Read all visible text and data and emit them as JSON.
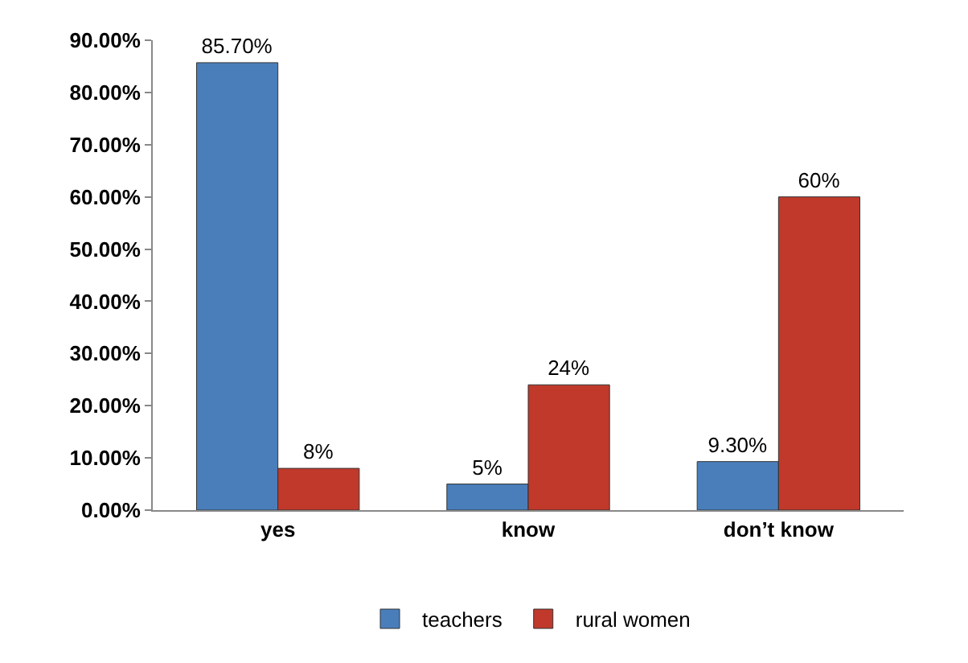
{
  "chart_data": {
    "type": "bar",
    "categories": [
      "yes",
      "know",
      "don’t know"
    ],
    "series": [
      {
        "name": "teachers",
        "color": "#4a7ebb",
        "values": [
          85.7,
          5,
          9.3
        ],
        "value_labels": [
          "85.70%",
          "5%",
          "9.30%"
        ]
      },
      {
        "name": "rural women",
        "color": "#c0392b",
        "values": [
          8,
          24,
          60
        ],
        "value_labels": [
          "8%",
          "24%",
          "60%"
        ]
      }
    ],
    "ylim": [
      0,
      90
    ],
    "yticks": [
      {
        "value": 0,
        "label": "0.00%"
      },
      {
        "value": 10,
        "label": "10.00%"
      },
      {
        "value": 20,
        "label": "20.00%"
      },
      {
        "value": 30,
        "label": "30.00%"
      },
      {
        "value": 40,
        "label": "40.00%"
      },
      {
        "value": 50,
        "label": "50.00%"
      },
      {
        "value": 60,
        "label": "60.00%"
      },
      {
        "value": 70,
        "label": "70.00%"
      },
      {
        "value": 80,
        "label": "80.00%"
      },
      {
        "value": 90,
        "label": "90.00%"
      }
    ],
    "legend": "bottom"
  }
}
